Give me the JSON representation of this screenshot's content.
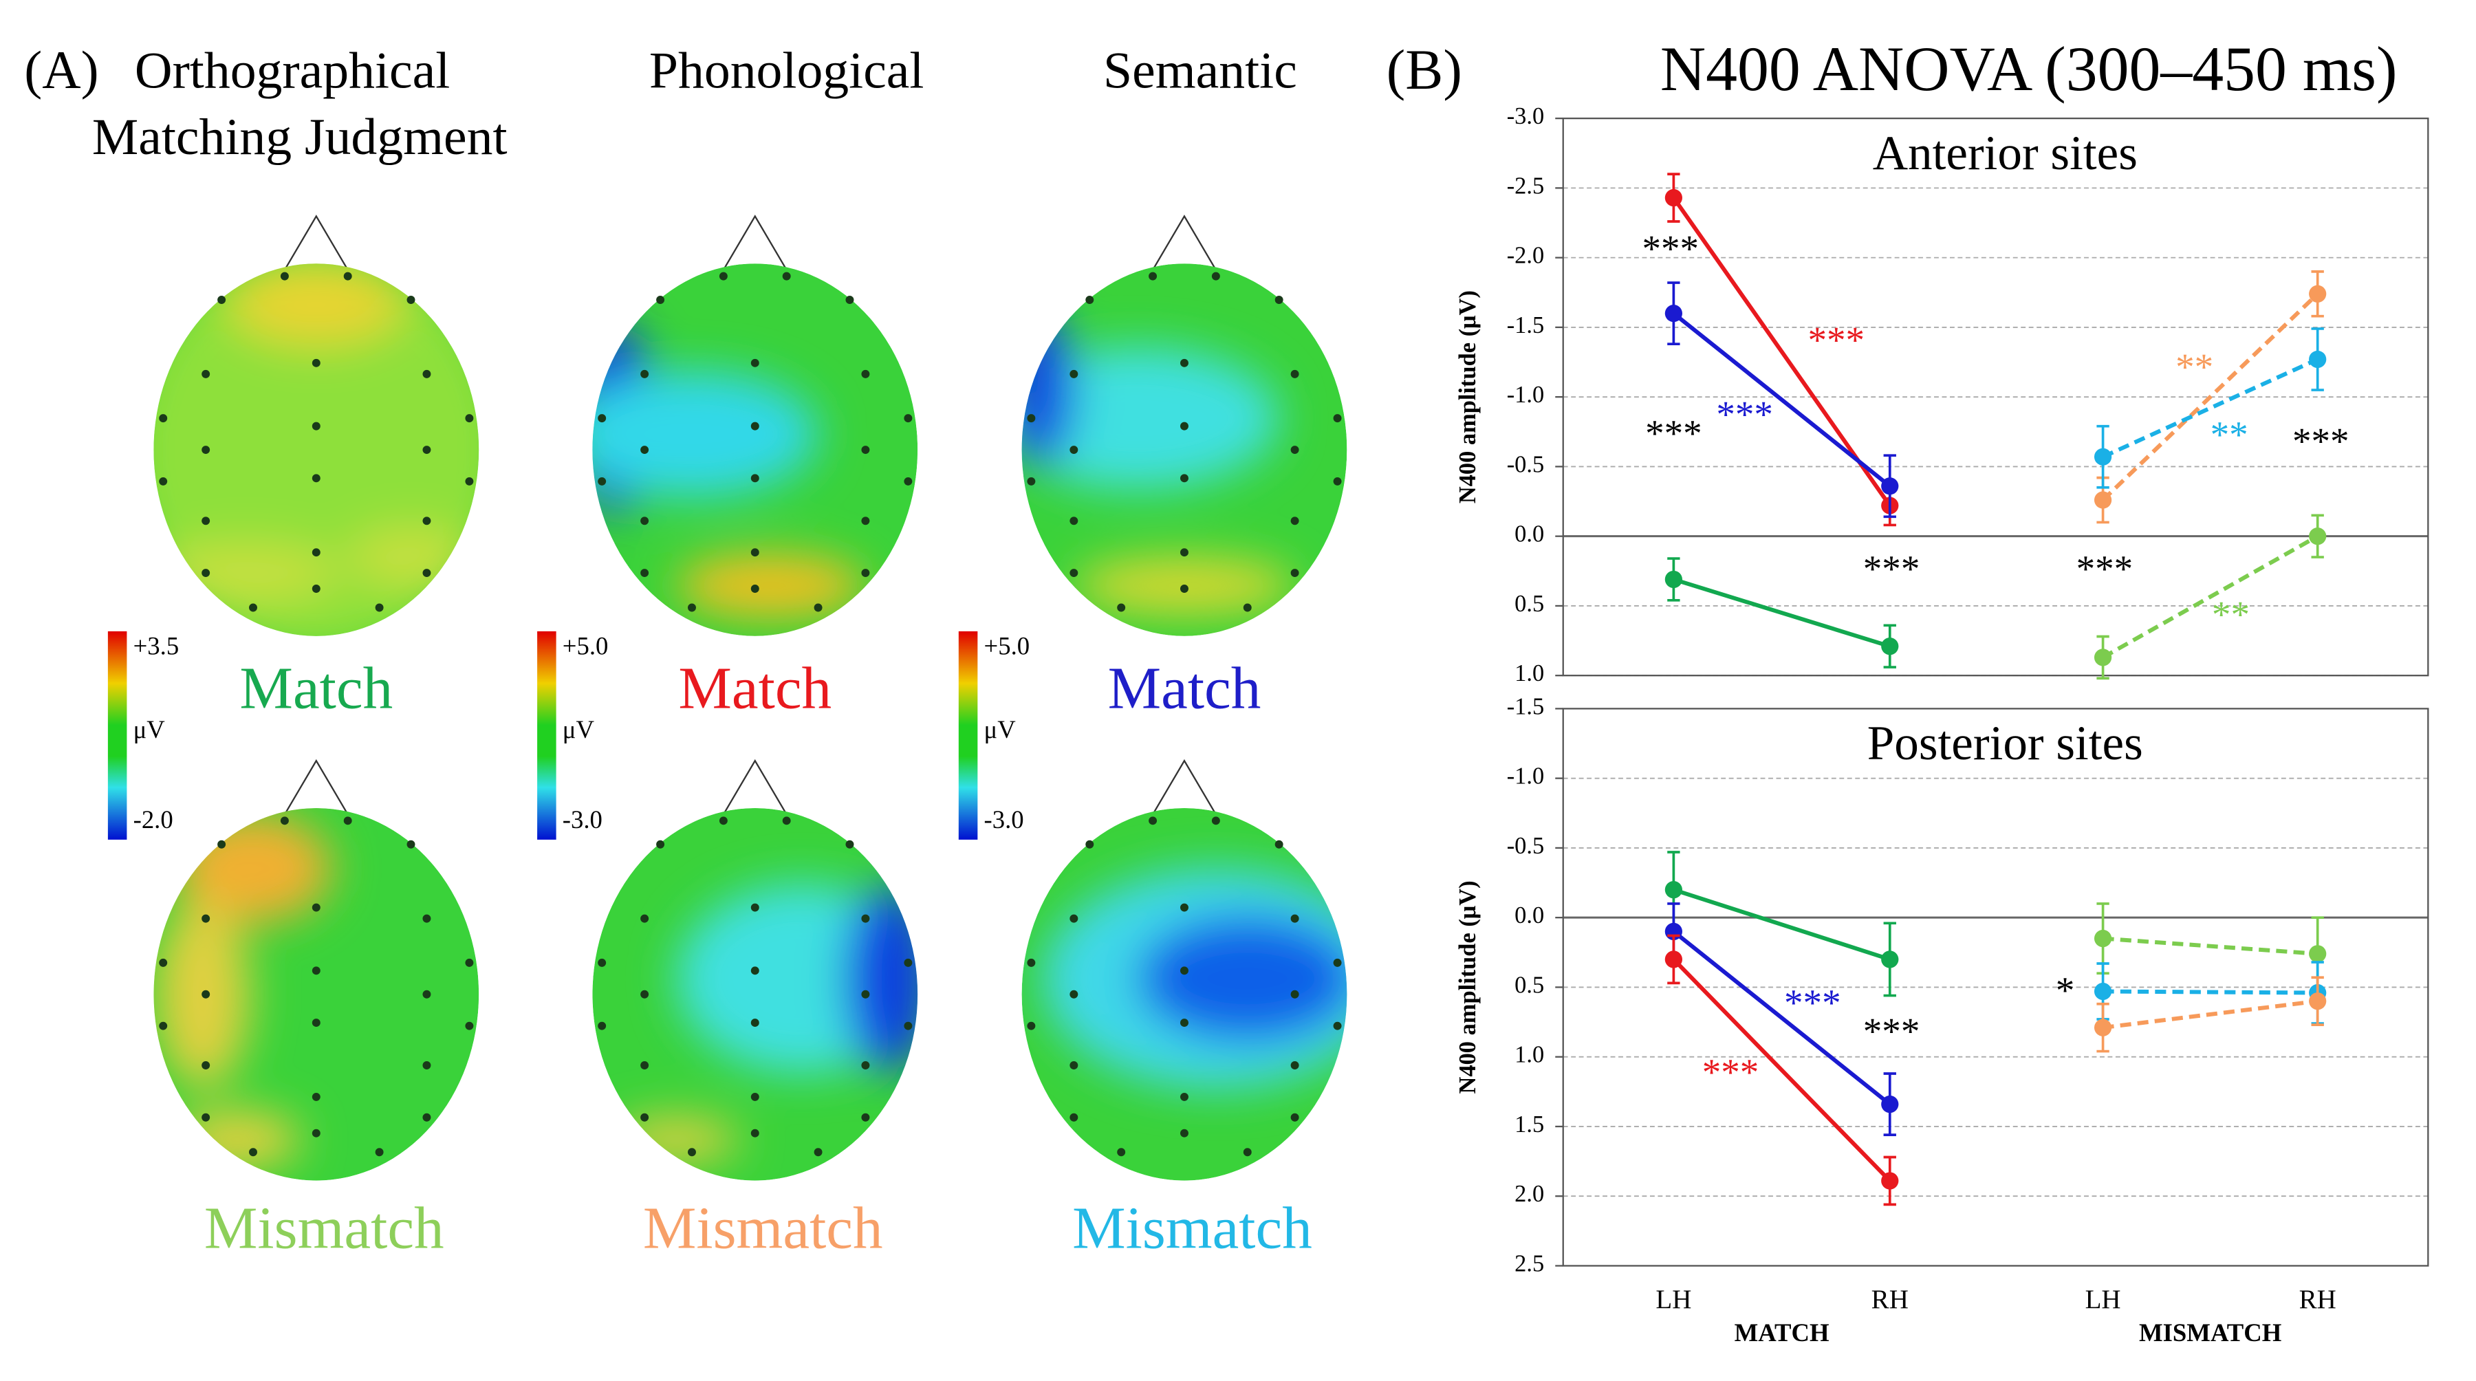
{
  "panel_a": {
    "label": "(A)",
    "columns": [
      {
        "heading": [
          "Orthographical",
          "Matching Judgment"
        ],
        "match": "Match",
        "mismatch": "Mismatch",
        "match_color": "#17a94f",
        "mismatch_color": "#8dcf5a",
        "colorbar": [
          "+3.5",
          "μV",
          "-2.0"
        ]
      },
      {
        "heading": [
          "Phonological"
        ],
        "match": "Match",
        "mismatch": "Mismatch",
        "match_color": "#e8191e",
        "mismatch_color": "#f7a068",
        "colorbar": [
          "+5.0",
          "μV",
          "-3.0"
        ]
      },
      {
        "heading": [
          "Semantic"
        ],
        "match": "Match",
        "mismatch": "Mismatch",
        "match_color": "#1e1ec8",
        "mismatch_color": "#22b8e6",
        "colorbar": [
          "+5.0",
          "μV",
          "-3.0"
        ]
      }
    ]
  },
  "panel_b": {
    "label": "(B)",
    "title": "N400 ANOVA (300–450 ms)"
  },
  "chart_data": [
    {
      "type": "line",
      "title": "Anterior sites",
      "y_label": "N400 amplitude (μV)",
      "ylim": [
        -3,
        1
      ],
      "invert_y": true,
      "grid": true,
      "yticks": [
        {
          "value": -3,
          "label": "-3.0"
        },
        -2.5,
        {
          "value": -2,
          "label": "-2.0"
        },
        -1.5,
        {
          "value": -1,
          "label": "-1.0"
        },
        -0.5,
        {
          "value": 0,
          "label": "0.0"
        },
        0.5,
        {
          "value": 1,
          "label": "1.0"
        }
      ],
      "series": [
        {
          "color": "#e8191e",
          "dashed": false,
          "values": [
            -2.43,
            -0.22,
            null,
            null
          ],
          "errors": [
            0.17,
            0.14,
            null,
            null
          ]
        },
        {
          "color": "#1a1ad0",
          "dashed": false,
          "values": [
            -1.6,
            -0.36,
            null,
            null
          ],
          "errors": [
            0.22,
            0.22,
            null,
            null
          ]
        },
        {
          "color": "#12a84f",
          "dashed": false,
          "values": [
            0.31,
            0.79,
            null,
            null
          ],
          "errors": [
            0.15,
            0.15,
            null,
            null
          ]
        },
        {
          "color": "#f79a5a",
          "dashed": true,
          "values": [
            null,
            null,
            -0.26,
            -1.74
          ],
          "errors": [
            null,
            null,
            0.16,
            0.16
          ]
        },
        {
          "color": "#1ab0e6",
          "dashed": true,
          "values": [
            null,
            null,
            -0.57,
            -1.27
          ],
          "errors": [
            null,
            null,
            0.22,
            0.22
          ]
        },
        {
          "color": "#7ccc4e",
          "dashed": true,
          "values": [
            null,
            null,
            0.87,
            0.0
          ],
          "errors": [
            null,
            null,
            0.15,
            0.15
          ]
        }
      ],
      "annotations": [
        {
          "text": "***",
          "color": "#000000"
        },
        {
          "text": "***",
          "color": "#e8191e"
        },
        {
          "text": "***",
          "color": "#000000"
        },
        {
          "text": "***",
          "color": "#1a1ad0"
        },
        {
          "text": "**",
          "color": "#f79a5a"
        },
        {
          "text": "**",
          "color": "#1ab0e6"
        },
        {
          "text": "***",
          "color": "#000000"
        },
        {
          "text": "***",
          "color": "#000000"
        },
        {
          "text": "***",
          "color": "#000000"
        },
        {
          "text": "**",
          "color": "#7ccc4e"
        }
      ]
    },
    {
      "type": "line",
      "title": "Posterior sites",
      "y_label": "N400 amplitude (μV)",
      "ylim": [
        -1.5,
        2.5
      ],
      "invert_y": true,
      "grid": true,
      "yticks": [
        -1.5,
        {
          "value": -1,
          "label": "-1.0"
        },
        -0.5,
        {
          "value": 0,
          "label": "0.0"
        },
        0.5,
        {
          "value": 1,
          "label": "1.0"
        },
        1.5,
        {
          "value": 2,
          "label": "2.0"
        },
        2.5
      ],
      "categories": [
        "LH",
        "RH",
        "LH",
        "RH"
      ],
      "groups": [
        "MATCH",
        "MISMATCH"
      ],
      "series": [
        {
          "color": "#12a84f",
          "dashed": false,
          "values": [
            -0.2,
            0.3,
            null,
            null
          ],
          "errors": [
            0.27,
            0.26,
            null,
            null
          ]
        },
        {
          "color": "#1a1ad0",
          "dashed": false,
          "values": [
            0.1,
            1.34,
            null,
            null
          ],
          "errors": [
            0.2,
            0.22,
            null,
            null
          ]
        },
        {
          "color": "#e8191e",
          "dashed": false,
          "values": [
            0.3,
            1.89,
            null,
            null
          ],
          "errors": [
            0.17,
            0.17,
            null,
            null
          ]
        },
        {
          "color": "#7ccc4e",
          "dashed": true,
          "values": [
            null,
            null,
            0.15,
            0.26
          ],
          "errors": [
            null,
            null,
            0.25,
            0.26
          ]
        },
        {
          "color": "#1ab0e6",
          "dashed": true,
          "values": [
            null,
            null,
            0.53,
            0.54
          ],
          "errors": [
            null,
            null,
            0.2,
            0.22
          ]
        },
        {
          "color": "#f79a5a",
          "dashed": true,
          "values": [
            null,
            null,
            0.79,
            0.6
          ],
          "errors": [
            null,
            null,
            0.17,
            0.17
          ]
        }
      ],
      "annotations": [
        {
          "text": "***",
          "color": "#1a1ad0"
        },
        {
          "text": "***",
          "color": "#000000"
        },
        {
          "text": "***",
          "color": "#e8191e"
        },
        {
          "text": "*",
          "color": "#000000"
        }
      ]
    }
  ]
}
